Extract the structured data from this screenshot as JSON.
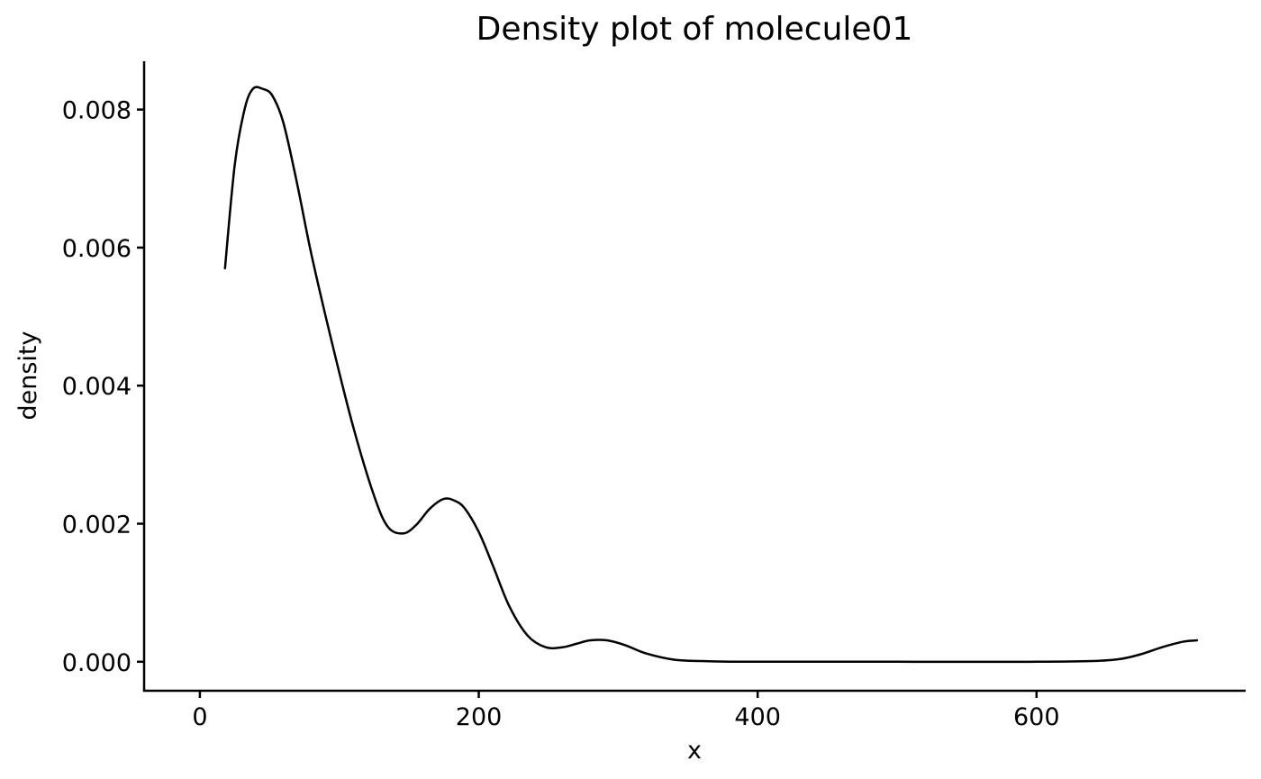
{
  "chart_data": {
    "type": "line",
    "title": "Density plot of molecule01",
    "xlabel": "x",
    "ylabel": "density",
    "xlim": [
      -40,
      750
    ],
    "ylim": [
      -0.00042,
      0.0087
    ],
    "x_ticks": [
      0,
      200,
      400,
      600
    ],
    "x_tick_labels": [
      "0",
      "200",
      "400",
      "600"
    ],
    "y_ticks": [
      0.0,
      0.002,
      0.004,
      0.006,
      0.008
    ],
    "y_tick_labels": [
      "0.000",
      "0.002",
      "0.004",
      "0.006",
      "0.008"
    ],
    "grid": false,
    "legend": "none",
    "line_color": "#000000",
    "series": [
      {
        "x": [
          18,
          25,
          32,
          38,
          45,
          52,
          60,
          70,
          80,
          95,
          110,
          125,
          135,
          146,
          155,
          165,
          175,
          183,
          190,
          200,
          210,
          222,
          235,
          248,
          260,
          270,
          280,
          292,
          305,
          320,
          340,
          360,
          380,
          420,
          500,
          600,
          640,
          660,
          675,
          690,
          705,
          715
        ],
        "y": [
          0.0057,
          0.0072,
          0.008,
          0.0083,
          0.0083,
          0.0082,
          0.0078,
          0.0069,
          0.0059,
          0.0046,
          0.0034,
          0.0024,
          0.00195,
          0.00186,
          0.00198,
          0.00222,
          0.00236,
          0.00233,
          0.00222,
          0.00188,
          0.0014,
          0.0008,
          0.00038,
          0.00021,
          0.00021,
          0.00026,
          0.00031,
          0.00031,
          0.00024,
          0.00012,
          3e-05,
          1e-05,
          0.0,
          0.0,
          0.0,
          0.0,
          1e-05,
          4e-05,
          0.00011,
          0.00021,
          0.00029,
          0.00031
        ]
      }
    ]
  }
}
